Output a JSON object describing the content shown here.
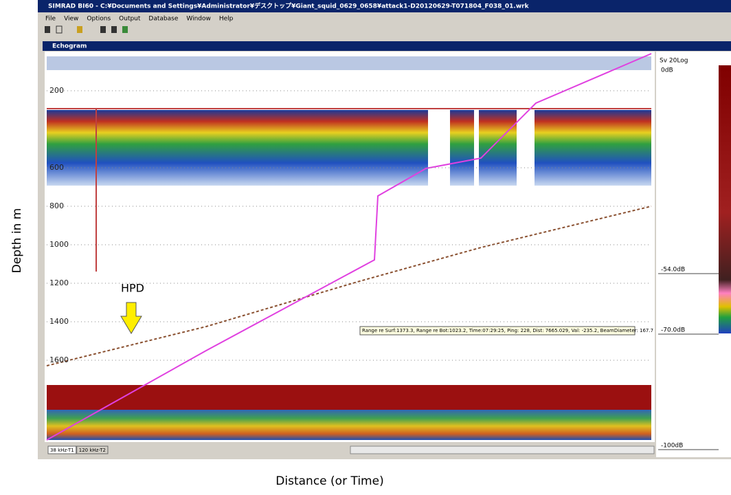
{
  "window": {
    "title": "SIMRAD BI60 - C:¥Documents and Settings¥Administrator¥デスクトップ¥Giant_squid_0629_0658¥attack1-D20120629-T071804_F038_01.wrk",
    "menu": [
      "File",
      "View",
      "Options",
      "Output",
      "Database",
      "Window",
      "Help"
    ]
  },
  "echogram": {
    "title": "Echogram",
    "depth_labels": [
      "200",
      "600",
      "800",
      "1000",
      "1200",
      "1400",
      "1600"
    ],
    "readout": "Range re Surf:1373.3, Range re Bot:1023.2, Time:07:29:25, Ping: 228, Dist: 7665.029, Val: -235.2, BeamDiameter: 167.7",
    "tabs": [
      "38 kHz-T1",
      "120 kHz-T2"
    ]
  },
  "color_scale": {
    "title": "Sv 20Log",
    "labels": [
      "0dB",
      "-54.0dB",
      "-70.0dB",
      "-100dB"
    ]
  },
  "annotations": {
    "marker": "HPD",
    "y_axis": "Depth in m",
    "x_axis": "Distance (or Time)"
  }
}
